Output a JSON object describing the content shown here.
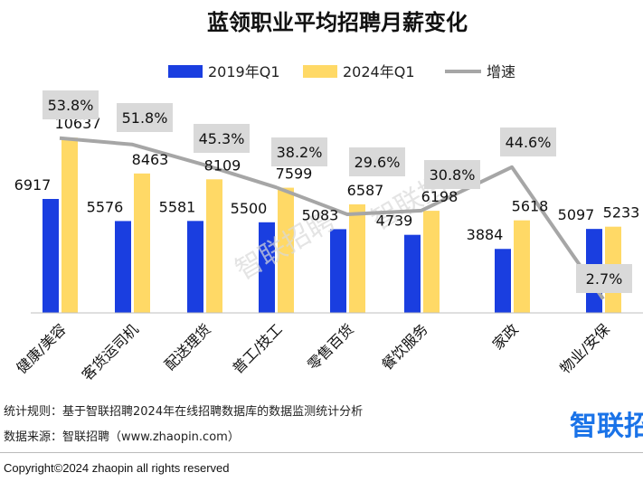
{
  "chart_data": {
    "type": "bar",
    "title": "蓝领职业平均招聘月薪变化",
    "categories": [
      "健康/美容",
      "客货运司机",
      "配送理货",
      "普工/技工",
      "零售百货",
      "餐饮服务",
      "家政",
      "物业/安保"
    ],
    "series": [
      {
        "name": "2019年Q1",
        "values": [
          6917,
          5576,
          5581,
          5500,
          5083,
          4739,
          3884,
          5097
        ],
        "color": "#1a3ee0"
      },
      {
        "name": "2024年Q1",
        "values": [
          10637,
          8463,
          8109,
          7599,
          6587,
          6198,
          5618,
          5233
        ],
        "color": "#ffd966"
      }
    ],
    "line_series": {
      "name": "增速",
      "values": [
        53.8,
        51.8,
        45.3,
        38.2,
        29.6,
        30.8,
        44.6,
        2.7
      ],
      "labels": [
        "53.8%",
        "51.8%",
        "45.3%",
        "38.2%",
        "29.6%",
        "30.8%",
        "44.6%",
        "2.7%"
      ],
      "color": "#a6a6a6"
    },
    "ylim": [
      0,
      12000
    ],
    "legend_position": "top",
    "grid": false
  },
  "watermark": "智联招聘",
  "footer": {
    "rule": "统计规则：基于智联招聘2024年在线招聘数据库的数据监测统计分析",
    "source": "数据来源：智联招聘（www.zhaopin.com）",
    "copyright": "Copyright©2024 zhaopin all rights reserved",
    "logo_text": "智联招"
  }
}
